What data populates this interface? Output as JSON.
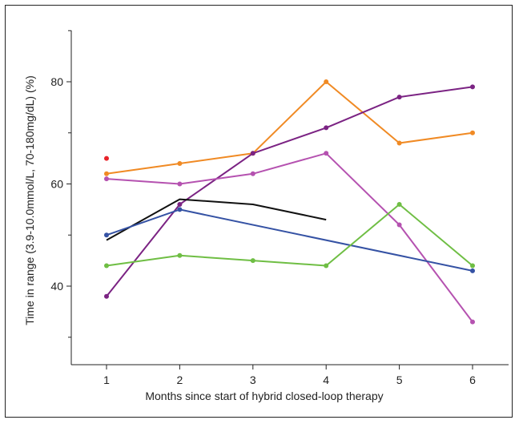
{
  "chart_data": {
    "type": "line",
    "title": "",
    "xlabel": "Months since start of hybrid closed-loop therapy",
    "ylabel": "Time in range (3.9-10.0mmol/L, 70-180mg/dL) (%)",
    "xlim": [
      0.6,
      6.45
    ],
    "ylim": [
      26,
      90
    ],
    "x_ticks": [
      1,
      2,
      3,
      4,
      5,
      6
    ],
    "y_ticks": [
      40,
      60,
      80
    ],
    "grid": false,
    "legend": "none",
    "series": [
      {
        "color": "#e8232a",
        "markers": true,
        "points": [
          [
            1,
            65
          ]
        ]
      },
      {
        "color": "#f08a24",
        "markers": true,
        "points": [
          [
            1,
            62
          ],
          [
            2,
            64
          ],
          [
            3,
            66
          ],
          [
            4,
            80
          ],
          [
            5,
            68
          ],
          [
            6,
            70
          ]
        ]
      },
      {
        "color": "#7b2383",
        "markers": true,
        "points": [
          [
            1,
            38
          ],
          [
            2,
            56
          ],
          [
            3,
            66
          ],
          [
            4,
            71
          ],
          [
            5,
            77
          ],
          [
            6,
            79
          ]
        ]
      },
      {
        "color": "#b552b0",
        "markers": true,
        "points": [
          [
            1,
            61
          ],
          [
            2,
            60
          ],
          [
            3,
            62
          ],
          [
            4,
            66
          ],
          [
            5,
            52
          ],
          [
            6,
            33
          ]
        ]
      },
      {
        "color": "#111111",
        "markers": false,
        "points": [
          [
            1,
            49
          ],
          [
            2,
            57
          ],
          [
            3,
            56
          ],
          [
            4,
            53
          ]
        ]
      },
      {
        "color": "#3552a4",
        "markers": true,
        "points": [
          [
            1,
            50
          ],
          [
            2,
            55
          ],
          [
            6,
            43
          ]
        ]
      },
      {
        "color": "#6fbe44",
        "markers": true,
        "points": [
          [
            1,
            44
          ],
          [
            2,
            46
          ],
          [
            3,
            45
          ],
          [
            4,
            44
          ],
          [
            5,
            56
          ],
          [
            6,
            44
          ]
        ]
      }
    ]
  }
}
